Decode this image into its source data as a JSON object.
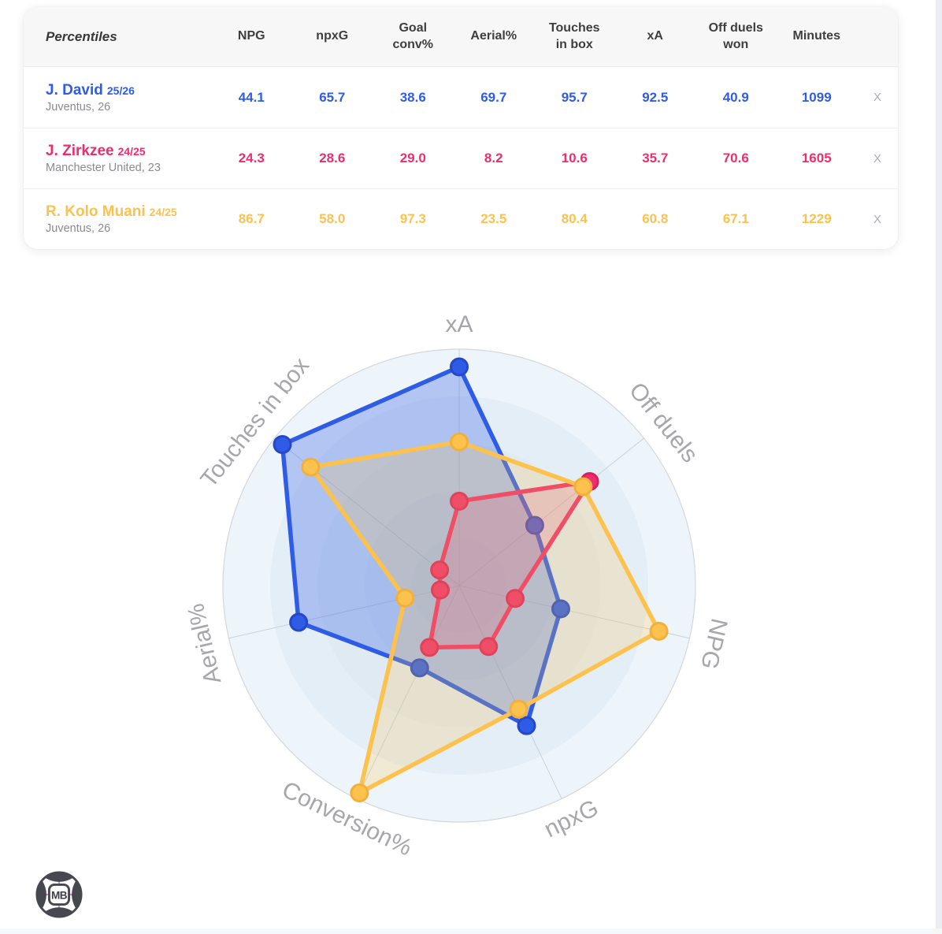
{
  "table": {
    "header": [
      "Percentiles",
      "NPG",
      "npxG",
      "Goal conv%",
      "Aerial%",
      "Touches in box",
      "xA",
      "Off duels won",
      "Minutes"
    ],
    "rows": [
      {
        "name": "J. David",
        "season": "25/26",
        "sub": "Juventus, 26",
        "color": "#2e5ce6",
        "values": [
          "44.1",
          "65.7",
          "38.6",
          "69.7",
          "95.7",
          "92.5",
          "40.9",
          "1099"
        ],
        "close": "X"
      },
      {
        "name": "J. Zirkzee",
        "season": "24/25",
        "sub": "Manchester United, 23",
        "color": "#ee2d6e",
        "values": [
          "24.3",
          "28.6",
          "29.0",
          "8.2",
          "10.6",
          "35.7",
          "70.6",
          "1605"
        ],
        "close": "X"
      },
      {
        "name": "R. Kolo Muani",
        "season": "24/25",
        "sub": "Juventus, 26",
        "color": "#fcc24d",
        "values": [
          "86.7",
          "58.0",
          "97.3",
          "23.5",
          "80.4",
          "60.8",
          "67.1",
          "1229"
        ],
        "close": "X"
      }
    ]
  },
  "chart_data": {
    "type": "radar",
    "axes": [
      "xA",
      "Off duels",
      "NPG",
      "npxG",
      "Conversion%",
      "Aerial%",
      "Touches in box"
    ],
    "max": 100,
    "series": [
      {
        "name": "J. David 25/26",
        "color": "#2e5ce6",
        "marker_stroke": "#2547c8",
        "fill_opacity": 0.3,
        "values": [
          92.5,
          40.9,
          44.1,
          65.7,
          38.6,
          69.7,
          95.7
        ]
      },
      {
        "name": "J. Zirkzee 24/25",
        "color": "#ee2d6e",
        "marker_stroke": "#d81f5f",
        "fill_opacity": 0.2,
        "values": [
          35.7,
          70.6,
          24.3,
          28.6,
          29.0,
          8.2,
          10.6
        ]
      },
      {
        "name": "R. Kolo Muani 24/25",
        "color": "#fcc24d",
        "marker_stroke": "#f3b038",
        "fill_opacity": 0.22,
        "values": [
          60.8,
          67.1,
          86.7,
          58.0,
          97.3,
          23.5,
          80.4
        ]
      }
    ],
    "ring_fills": [
      "#edf4fa",
      "#e4eef6",
      "#dfeaf3",
      "#dae6f0",
      "#d6e2ed"
    ],
    "outer_ring_stroke": "#d3d7dc",
    "spoke_color": "#b9bcbf",
    "label_color": "#a7a7ab",
    "label_font_size": 30
  },
  "logo": {
    "text": "MB"
  }
}
